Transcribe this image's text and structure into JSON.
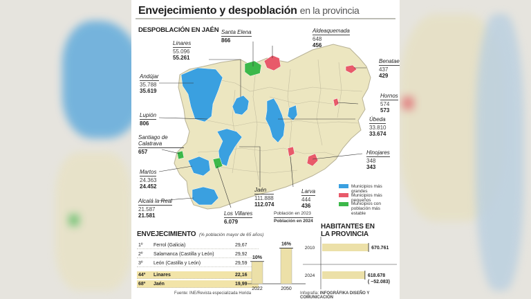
{
  "title": "Envejecimiento y despoblación",
  "subtitle": "en la provincia",
  "map_section": "DESPOBLACIÓN EN JAÉN",
  "colors": {
    "grandes": "#3aa0e0",
    "pequenos": "#e85a6a",
    "estable": "#3cb84a",
    "base": "#ece6c0",
    "border": "#b8b296",
    "bar": "#ece0a8"
  },
  "municipalities": [
    {
      "name": "Santa Elena",
      "v2023": "",
      "v2024": "866"
    },
    {
      "name": "Aldeaquemada",
      "v2023": "648",
      "v2024": "456"
    },
    {
      "name": "Linares",
      "v2023": "55.096",
      "v2024": "55.261"
    },
    {
      "name": "Benatae",
      "v2023": "437",
      "v2024": "429"
    },
    {
      "name": "Andújar",
      "v2023": "35.788",
      "v2024": "35.619"
    },
    {
      "name": "Hornos",
      "v2023": "574",
      "v2024": "573"
    },
    {
      "name": "Lupión",
      "v2023": "",
      "v2024": "806"
    },
    {
      "name": "Úbeda",
      "v2023": "33.810",
      "v2024": "33.674"
    },
    {
      "name": "Santiago de Calatrava",
      "v2023": "",
      "v2024": "657"
    },
    {
      "name": "Hinojares",
      "v2023": "348",
      "v2024": "343"
    },
    {
      "name": "Martos",
      "v2023": "24.363",
      "v2024": "24.452"
    },
    {
      "name": "Jaén",
      "v2023": "111.888",
      "v2024": "112.074"
    },
    {
      "name": "Larva",
      "v2023": "444",
      "v2024": "436"
    },
    {
      "name": "Alcalá la Real",
      "v2023": "21.587",
      "v2024": "21.581"
    },
    {
      "name": "Los Villares",
      "v2023": "",
      "v2024": "6.079"
    }
  ],
  "legend": {
    "grandes": "Municipios más grandes",
    "pequenos": "Municipios más pequeños",
    "estable": "Municipios con población más estable",
    "pob2023": "Población en 2023",
    "pob2024": "Población en 2024"
  },
  "aging": {
    "heading": "ENVEJECIMIENTO",
    "note": "(% población mayor de 65 años)",
    "rows": [
      {
        "pos": "1º",
        "name": "Ferrol (Galicia)",
        "value": "29,67"
      },
      {
        "pos": "2º",
        "name": "Salamanca (Castilla y León)",
        "value": "29,92"
      },
      {
        "pos": "3º",
        "name": "León (Castilla y León)",
        "value": "29,59"
      },
      {
        "pos": "44º",
        "name": "Linares",
        "value": "22,16"
      },
      {
        "pos": "68º",
        "name": "Jaén",
        "value": "19,99"
      }
    ],
    "bars": [
      {
        "year": "2022",
        "pct": 10,
        "label": "10%"
      },
      {
        "year": "2050",
        "pct": 16,
        "label": "16%"
      }
    ]
  },
  "inhabitants": {
    "heading1": "HABITANTES EN",
    "heading2": "LA PROVINCIA",
    "rows": [
      {
        "year": "2010",
        "value": 670761,
        "label": "670.761",
        "delta": ""
      },
      {
        "year": "2024",
        "value": 618678,
        "label": "618.678",
        "delta": "( −52.083)"
      }
    ]
  },
  "footer": {
    "source": "Fuente: INE/Revista especializada Horida",
    "credit_prefix": "Infografía:",
    "credit": "INFOGRÁFIKA DISEÑO Y COMUNICACIÓN"
  }
}
